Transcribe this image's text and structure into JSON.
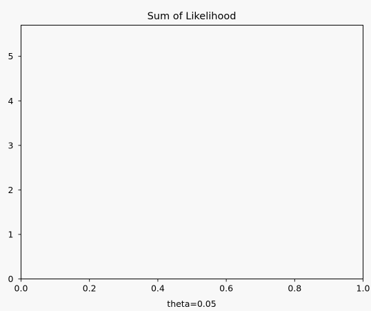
{
  "chart_data": {
    "type": "line",
    "title": "Sum of Likelihood",
    "xlabel": "theta=0.05",
    "ylabel": "",
    "xlim": [
      0.0,
      1.0
    ],
    "ylim": [
      0,
      5.7
    ],
    "x_ticks": [
      0.0,
      0.2,
      0.4,
      0.6,
      0.8,
      1.0
    ],
    "x_tick_labels": [
      "0.0",
      "0.2",
      "0.4",
      "0.6",
      "0.8",
      "1.0"
    ],
    "y_ticks": [
      0,
      1,
      2,
      3,
      4,
      5
    ],
    "y_tick_labels": [
      "0",
      "1",
      "2",
      "3",
      "4",
      "5"
    ],
    "grid": false,
    "series": []
  },
  "colors": {
    "background": "#f8f8f8",
    "axes": "#000000"
  }
}
